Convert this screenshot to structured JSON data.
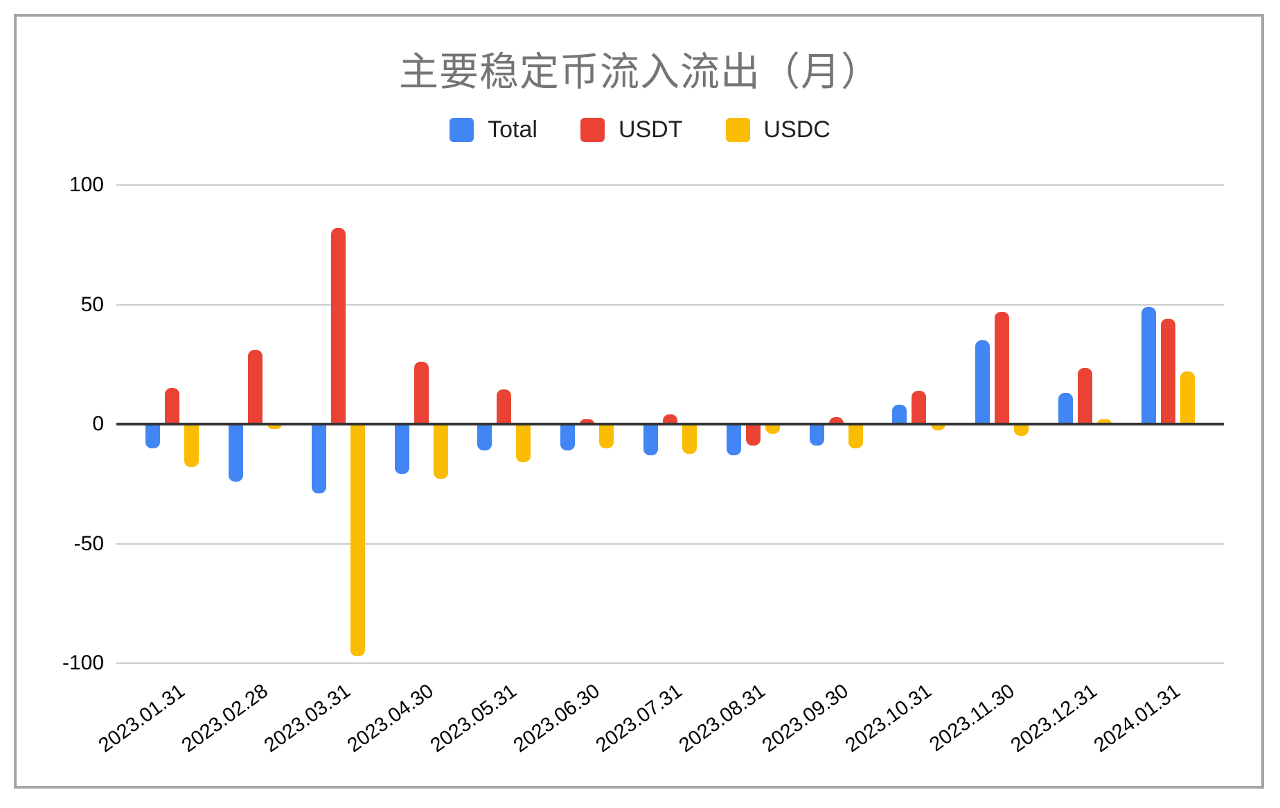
{
  "title": "主要稳定币流入流出（月）",
  "legend": [
    {
      "label": "Total",
      "color": "#4285F4"
    },
    {
      "label": "USDT",
      "color": "#EA4335"
    },
    {
      "label": "USDC",
      "color": "#FBBC04"
    }
  ],
  "palette": {
    "total_blue": "#4285F4",
    "usdt_red": "#EA4335",
    "usdc_yellow": "#FBBC04",
    "gridline_gray": "#cccccc",
    "zero_axis_dark": "#333333",
    "title_gray": "#757575",
    "frame_gray": "#a5a5a5"
  },
  "chart_data": {
    "type": "bar",
    "title": "主要稳定币流入流出（月）",
    "xlabel": "",
    "ylabel": "",
    "ylim": [
      -100,
      100
    ],
    "yticks": [
      100,
      50,
      0,
      -50,
      -100
    ],
    "grid": true,
    "legend_position": "top",
    "categories": [
      "2023.01.31",
      "2023.02.28",
      "2023.03.31",
      "2023.04.30",
      "2023.05.31",
      "2023.06.30",
      "2023.07.31",
      "2023.08.31",
      "2023.09.30",
      "2023.10.31",
      "2023.11.30",
      "2023.12.31",
      "2024.01.31"
    ],
    "series": [
      {
        "name": "Total",
        "color": "#4285F4",
        "values": [
          -10,
          -24,
          -29,
          -21,
          -11,
          -11,
          -13,
          -13,
          -9,
          8,
          35,
          13,
          49
        ]
      },
      {
        "name": "USDT",
        "color": "#EA4335",
        "values": [
          15,
          31,
          82,
          26,
          14.5,
          2,
          4,
          -9,
          3,
          14,
          47,
          23.5,
          44
        ]
      },
      {
        "name": "USDC",
        "color": "#FBBC04",
        "values": [
          -18,
          -2,
          -97,
          -23,
          -16,
          -10,
          -12.5,
          -4,
          -10,
          -2.5,
          -5,
          2,
          22
        ]
      }
    ]
  }
}
